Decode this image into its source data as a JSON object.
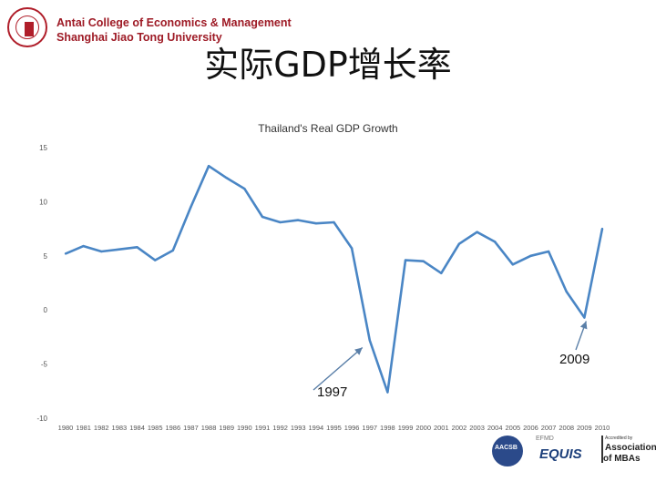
{
  "header": {
    "school_line1": "Antai College of Economics & Management",
    "school_line2": "Shanghai Jiao Tong University",
    "seal_icon": "university-seal-icon"
  },
  "slide_title": "实际GDP增长率",
  "annotations": {
    "label_1997": "1997",
    "label_2009": "2009"
  },
  "badges": {
    "aacsb": "AACSB",
    "efmd": "EFMD",
    "equis": "EQUIS",
    "amba_small": "Accredited by",
    "amba_line1": "Association",
    "amba_line2": "of MBAs"
  },
  "colors": {
    "line": "#4a86c5",
    "brand_red": "#9e1b26"
  },
  "chart_data": {
    "type": "line",
    "title": "Thailand's Real GDP Growth",
    "xlabel": "",
    "ylabel": "",
    "ylim": [
      -10,
      15
    ],
    "yticks": [
      "15",
      "10",
      "5",
      "0",
      "-5",
      "-10"
    ],
    "grid": false,
    "categories": [
      "1980",
      "1981",
      "1982",
      "1983",
      "1984",
      "1985",
      "1986",
      "1987",
      "1988",
      "1989",
      "1990",
      "1991",
      "1992",
      "1993",
      "1994",
      "1995",
      "1996",
      "1997",
      "1998",
      "1999",
      "2000",
      "2001",
      "2002",
      "2003",
      "2004",
      "2005",
      "2006",
      "2007",
      "2008",
      "2009",
      "2010"
    ],
    "series": [
      {
        "values": [
          5.2,
          5.9,
          5.4,
          5.6,
          5.8,
          4.6,
          5.5,
          9.5,
          13.3,
          12.2,
          11.2,
          8.6,
          8.1,
          8.3,
          8.0,
          8.1,
          5.7,
          -2.8,
          -7.6,
          4.6,
          4.5,
          3.4,
          6.1,
          7.2,
          6.3,
          4.2,
          5.0,
          5.4,
          1.7,
          -0.7,
          7.5
        ]
      }
    ]
  }
}
